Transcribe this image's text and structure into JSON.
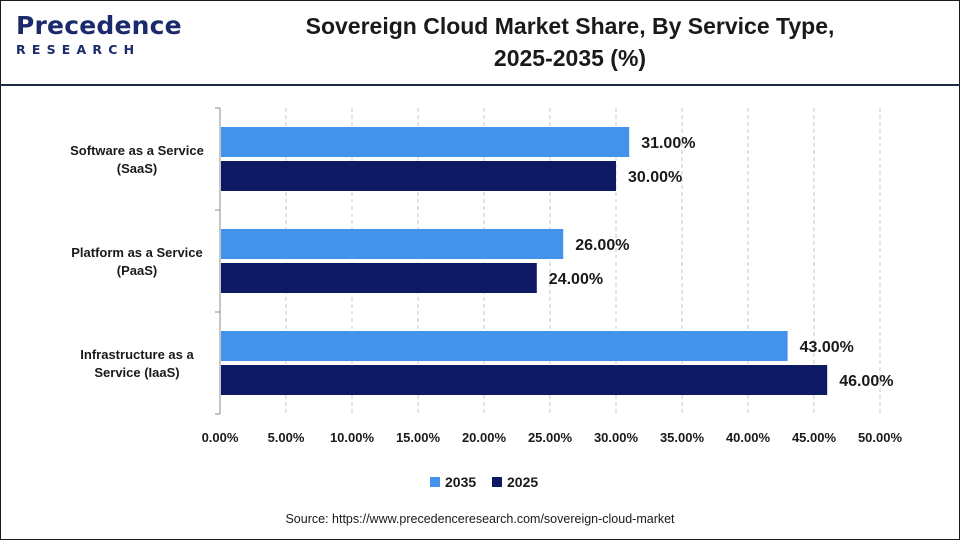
{
  "header": {
    "logo_top": "Precedence",
    "logo_bottom": "RESEARCH",
    "title_line1": "Sovereign Cloud Market Share, By Service Type,",
    "title_line2": "2025-2035 (%)"
  },
  "chart_data": {
    "type": "bar",
    "orientation": "horizontal",
    "categories": [
      "Software as a Service (SaaS)",
      "Platform as a Service (PaaS)",
      "Infrastructure as a Service (IaaS)"
    ],
    "category_lines": [
      [
        "Software as a Service",
        "(SaaS)"
      ],
      [
        "Platform as a Service",
        "(PaaS)"
      ],
      [
        "Infrastructure as a",
        "Service (IaaS)"
      ]
    ],
    "series": [
      {
        "name": "2035",
        "values": [
          31.0,
          26.0,
          43.0
        ],
        "labels": [
          "31.00%",
          "26.00%",
          "43.00%"
        ],
        "color": "#4393ec"
      },
      {
        "name": "2025",
        "values": [
          30.0,
          24.0,
          46.0
        ],
        "labels": [
          "30.00%",
          "24.00%",
          "46.00%"
        ],
        "color": "#0d1a63"
      }
    ],
    "xlim": [
      0,
      50
    ],
    "xticks": [
      "0.00%",
      "5.00%",
      "10.00%",
      "15.00%",
      "20.00%",
      "25.00%",
      "30.00%",
      "35.00%",
      "40.00%",
      "45.00%",
      "50.00%"
    ],
    "grid": true,
    "legend_position": "bottom"
  },
  "footer": {
    "source": "Source: https://www.precedenceresearch.com/sovereign-cloud-market"
  }
}
